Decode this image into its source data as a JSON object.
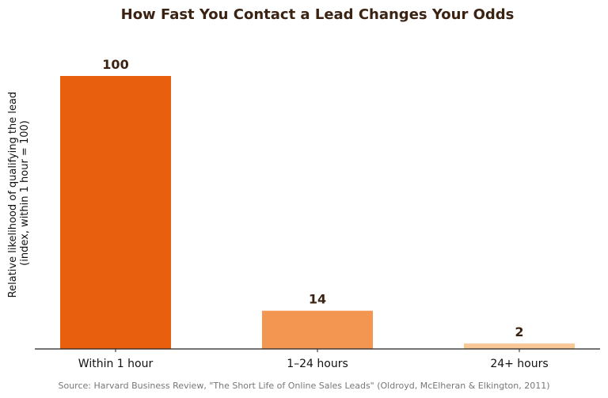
{
  "chart_data": {
    "type": "bar",
    "title": "How Fast You Contact a Lead Changes Your Odds",
    "ylabel_lines": [
      "Relative likelihood of qualifying the lead",
      "(index, within 1 hour = 100)"
    ],
    "xlabel": "",
    "categories": [
      "Within 1 hour",
      "1–24 hours",
      "24+ hours"
    ],
    "values": [
      100,
      14,
      2
    ],
    "data_labels": [
      "100",
      "14",
      "2"
    ],
    "colors": [
      "#e8600e",
      "#f39651",
      "#f8c898"
    ],
    "ylim": [
      0,
      100
    ],
    "grid": false,
    "source": "Source: Harvard Business Review, \"The Short Life of Online Sales Leads\" (Oldroyd, McElheran & Elkington, 2011)"
  }
}
